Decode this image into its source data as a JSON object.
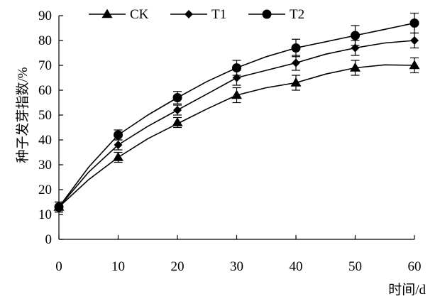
{
  "chart_data": {
    "type": "line",
    "xlabel": "时间/d",
    "ylabel": "种子发芽指数/%",
    "xlim": [
      0,
      60
    ],
    "ylim": [
      0,
      90
    ],
    "xticks": [
      "0",
      "10",
      "20",
      "30",
      "40",
      "50",
      "60"
    ],
    "yticks": [
      "0",
      "10",
      "20",
      "30",
      "40",
      "50",
      "60",
      "70",
      "80",
      "90"
    ],
    "legend_position": "top-left",
    "grid": false,
    "x": [
      0,
      10,
      20,
      30,
      40,
      50,
      60
    ],
    "series": [
      {
        "name": "CK",
        "marker": "triangle",
        "values": [
          13,
          33,
          47,
          58,
          63,
          69,
          70
        ],
        "errors": [
          2,
          2,
          2,
          3,
          3,
          3,
          3
        ],
        "curve_x": [
          0,
          5,
          10,
          15,
          20,
          25,
          30,
          35,
          40,
          45,
          50,
          55,
          60
        ],
        "curve_y": [
          13,
          24,
          33,
          40.5,
          46.5,
          52.5,
          58,
          61,
          63,
          66.5,
          69,
          70.2,
          70
        ]
      },
      {
        "name": "T1",
        "marker": "diamond",
        "values": [
          13,
          38,
          52,
          65,
          71,
          77,
          80
        ],
        "errors": [
          2,
          2,
          2,
          3,
          3,
          3,
          3
        ],
        "curve_x": [
          0,
          5,
          10,
          15,
          20,
          25,
          30,
          35,
          40,
          45,
          50,
          55,
          60
        ],
        "curve_y": [
          13,
          27,
          38,
          45.5,
          52,
          58.5,
          65,
          68,
          71,
          74.5,
          77,
          79,
          80
        ]
      },
      {
        "name": "T2",
        "marker": "circle",
        "values": [
          13,
          42,
          57,
          69,
          77,
          82,
          87
        ],
        "errors": [
          2,
          2,
          2.5,
          3,
          3.5,
          4,
          4
        ],
        "curve_x": [
          0,
          5,
          10,
          15,
          20,
          25,
          30,
          35,
          40,
          45,
          50,
          55,
          60
        ],
        "curve_y": [
          13,
          29,
          42,
          50,
          57,
          63.5,
          69,
          73.5,
          77,
          79.5,
          82,
          84.5,
          87
        ]
      }
    ],
    "colors": {
      "line": "#000000",
      "marker": "#000000",
      "axis": "#000000"
    }
  }
}
